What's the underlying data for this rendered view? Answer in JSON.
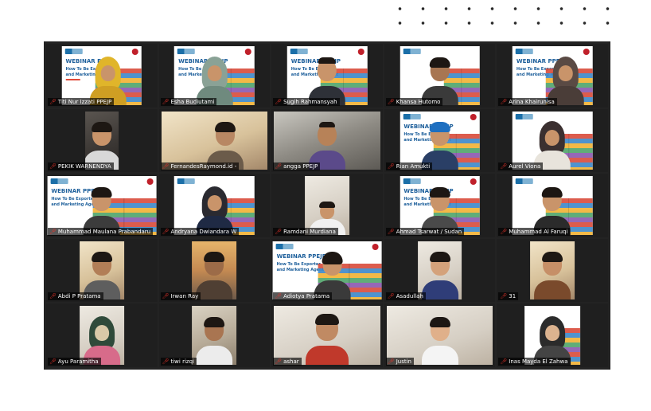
{
  "slide": {
    "title": "WEBINAR PPEJP",
    "subtitle_line1": "How To Be Exporter",
    "subtitle_line2": "and Marketing Agent"
  },
  "colors": {
    "mic_muted": "#e8342b",
    "slide_title": "#1d5f9b",
    "grid_bg": "#232323"
  },
  "participants": [
    {
      "name": "Titi Nur Izzati PPEJP",
      "icon": "muted-mic-icon"
    },
    {
      "name": "Esha Budiutami",
      "icon": "muted-mic-icon"
    },
    {
      "name": "Sugih Rahmansyah",
      "icon": "muted-mic-icon"
    },
    {
      "name": "Khansa Hutomo",
      "icon": "muted-mic-icon"
    },
    {
      "name": "Arina Khairunisa",
      "icon": "muted-mic-icon"
    },
    {
      "name": "PEKIK WARNENDYA",
      "icon": "muted-mic-icon"
    },
    {
      "name": "FernandesRaymond.id -",
      "icon": "muted-mic-icon"
    },
    {
      "name": "angga PPEJP",
      "icon": "muted-mic-icon"
    },
    {
      "name": "Rian Amukti",
      "icon": "muted-mic-icon"
    },
    {
      "name": "Aurel Viona",
      "icon": "muted-mic-icon"
    },
    {
      "name": "Muhammad Maulana Prabandaru",
      "icon": "muted-mic-icon"
    },
    {
      "name": "Andryana Dwiandara W",
      "icon": "muted-mic-icon"
    },
    {
      "name": "Ramdani Murdiana",
      "icon": "muted-mic-icon"
    },
    {
      "name": "Ahmad Tsarwat / Sudan",
      "icon": "muted-mic-icon"
    },
    {
      "name": "Muhammad Al Faruqi",
      "icon": "muted-mic-icon"
    },
    {
      "name": "Abdi P Pratama",
      "icon": "muted-mic-icon"
    },
    {
      "name": "Irwan Ray",
      "icon": "muted-mic-icon"
    },
    {
      "name": "Adiotya Pratama",
      "icon": "muted-mic-icon"
    },
    {
      "name": "Asadullah",
      "icon": "muted-mic-icon"
    },
    {
      "name": "31",
      "icon": "muted-mic-icon"
    },
    {
      "name": "Ayu Paramitha",
      "icon": "muted-mic-icon"
    },
    {
      "name": "tiwi rizqi",
      "icon": "muted-mic-icon"
    },
    {
      "name": "ashar",
      "icon": "muted-mic-icon"
    },
    {
      "name": "Justin",
      "icon": "muted-mic-icon"
    },
    {
      "name": "Inas Mayda El Zahwa",
      "icon": "muted-mic-icon"
    }
  ]
}
